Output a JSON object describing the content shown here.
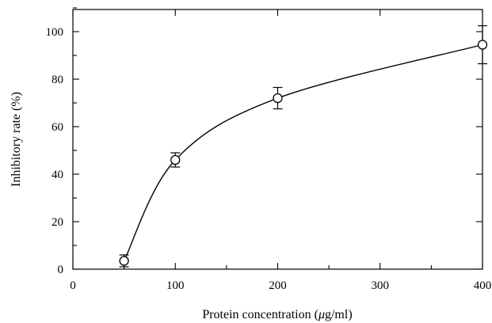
{
  "chart_data": {
    "type": "scatter",
    "xlabel": "Protein concentration (",
    "xlabel_unit": "μg/ml)",
    "ylabel": "Inhibitory rate (%)",
    "xlim": [
      0,
      400
    ],
    "ylim": [
      0,
      110
    ],
    "x_ticks": [
      "0",
      "100",
      "200",
      "300",
      "400"
    ],
    "y_ticks": [
      "0",
      "20",
      "40",
      "60",
      "80",
      "100"
    ],
    "grid": false,
    "legend": "none",
    "series": [
      {
        "x": [
          50,
          100,
          200,
          400
        ],
        "y": [
          3.5,
          46,
          72,
          94.5
        ],
        "error": [
          2.5,
          3,
          4.5,
          8
        ],
        "marker": "open-circle",
        "fitted_curve": true
      }
    ]
  }
}
